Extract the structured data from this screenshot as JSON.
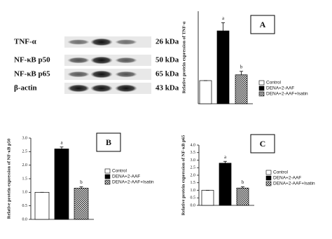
{
  "blot": {
    "proteins": [
      "TNF-α",
      "NF-κB p50",
      "NF-κB p65",
      "β-actin"
    ],
    "sizes": [
      "26 kDa",
      "50 kDa",
      "65 kDa",
      "43 kDa"
    ]
  },
  "chart_data": [
    {
      "type": "bar",
      "panel": "A",
      "y_label": "Relative protein expression of TNF-α",
      "categories": [
        "Control",
        "DENA+2-AAF",
        "DENA+2-AAF+Isatin"
      ],
      "values": [
        1,
        3.15,
        1.25
      ],
      "errors": [
        0,
        0.35,
        0.15
      ],
      "annotations": [
        null,
        "a",
        "b"
      ],
      "fills": [
        "white",
        "black",
        "checker"
      ],
      "ylim": [
        0,
        4
      ]
    },
    {
      "type": "bar",
      "panel": "B",
      "y_label": "Relative protein expression of NF-κB p50",
      "categories": [
        "Control",
        "DENA+2-AAF",
        "DENA+2-AAF+Isatin"
      ],
      "values": [
        1,
        2.6,
        1.15
      ],
      "errors": [
        0,
        0.07,
        0.05
      ],
      "annotations": [
        null,
        "a",
        "b"
      ],
      "fills": [
        "white",
        "black",
        "checker"
      ],
      "ylim": [
        0,
        3
      ],
      "yticks": [
        {
          "value": 0,
          "label": "0.0"
        },
        {
          "value": 0.5,
          "label": "0.5"
        },
        {
          "value": 1,
          "label": "1.0"
        },
        {
          "value": 1.5,
          "label": "1.5"
        },
        {
          "value": 2,
          "label": "2.0"
        },
        {
          "value": 2.5,
          "label": "2.5"
        },
        {
          "value": 3,
          "label": "3.0"
        }
      ]
    },
    {
      "type": "bar",
      "panel": "C",
      "y_label": "Relative protein expression of NF-κB p65",
      "categories": [
        "Control",
        "DENA+2-AAF",
        "DENA+2-AAF+Isatin"
      ],
      "values": [
        1,
        2.8,
        1.15
      ],
      "errors": [
        0,
        0.12,
        0.08
      ],
      "annotations": [
        null,
        "a",
        "b"
      ],
      "fills": [
        "white",
        "black",
        "checker"
      ],
      "ylim": [
        0,
        4
      ],
      "yticks": [
        {
          "value": 0,
          "label": "0.0"
        },
        {
          "value": 0.5,
          "label": "0.5"
        },
        {
          "value": 1,
          "label": "1.0"
        },
        {
          "value": 1.5,
          "label": "1.5"
        },
        {
          "value": 2,
          "label": "2.0"
        },
        {
          "value": 2.5,
          "label": "2.5"
        },
        {
          "value": 3,
          "label": "3.0"
        },
        {
          "value": 3.5,
          "label": "3.5"
        },
        {
          "value": 4,
          "label": "4.0"
        }
      ]
    }
  ]
}
